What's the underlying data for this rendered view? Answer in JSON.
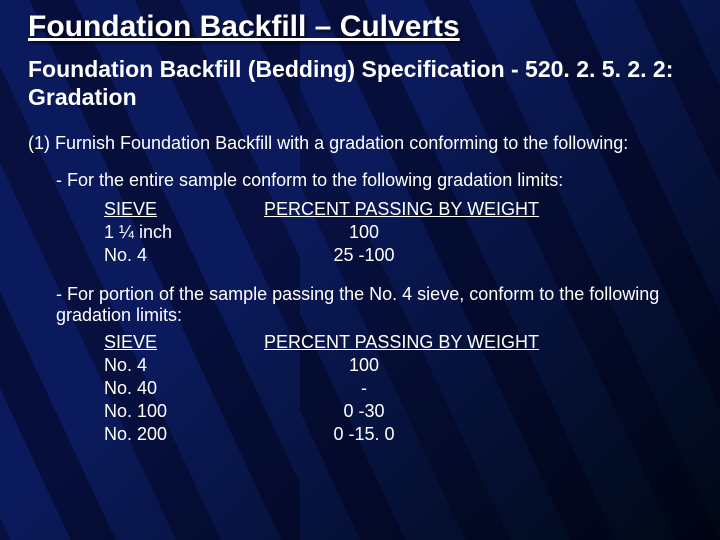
{
  "colors": {
    "background_start": "#0b1a5c",
    "background_end": "#000814",
    "text": "#ffffff",
    "stripe": "rgba(0,0,20,0.45)"
  },
  "typography": {
    "font_family": "Arial",
    "title_size_pt": 22,
    "subtitle_size_pt": 17,
    "body_size_pt": 14
  },
  "title": "Foundation Backfill – Culverts",
  "subtitle": "Foundation Backfill (Bedding) Specification - 520. 2. 5. 2. 2:  Gradation",
  "item1": "(1)  Furnish Foundation Backfill with a gradation conforming to the following:",
  "bullet1": "- For the entire sample conform to the following gradation limits:",
  "table1": {
    "header_sieve": "SIEVE",
    "header_percent": "PERCENT PASSING BY WEIGHT",
    "rows": [
      {
        "sieve": "1 ¼ inch",
        "percent": "100"
      },
      {
        "sieve": "No. 4",
        "percent": "25 -100"
      }
    ]
  },
  "bullet2": "- For portion of the sample passing the No. 4 sieve, conform to the following gradation limits:",
  "table2": {
    "header_sieve": "SIEVE",
    "header_percent": "PERCENT PASSING BY WEIGHT",
    "rows": [
      {
        "sieve": "No. 4",
        "percent": "100"
      },
      {
        "sieve": "No. 40",
        "percent": "-"
      },
      {
        "sieve": "No. 100",
        "percent": "0 -30"
      },
      {
        "sieve": "No. 200",
        "percent": "0 -15. 0"
      }
    ]
  }
}
